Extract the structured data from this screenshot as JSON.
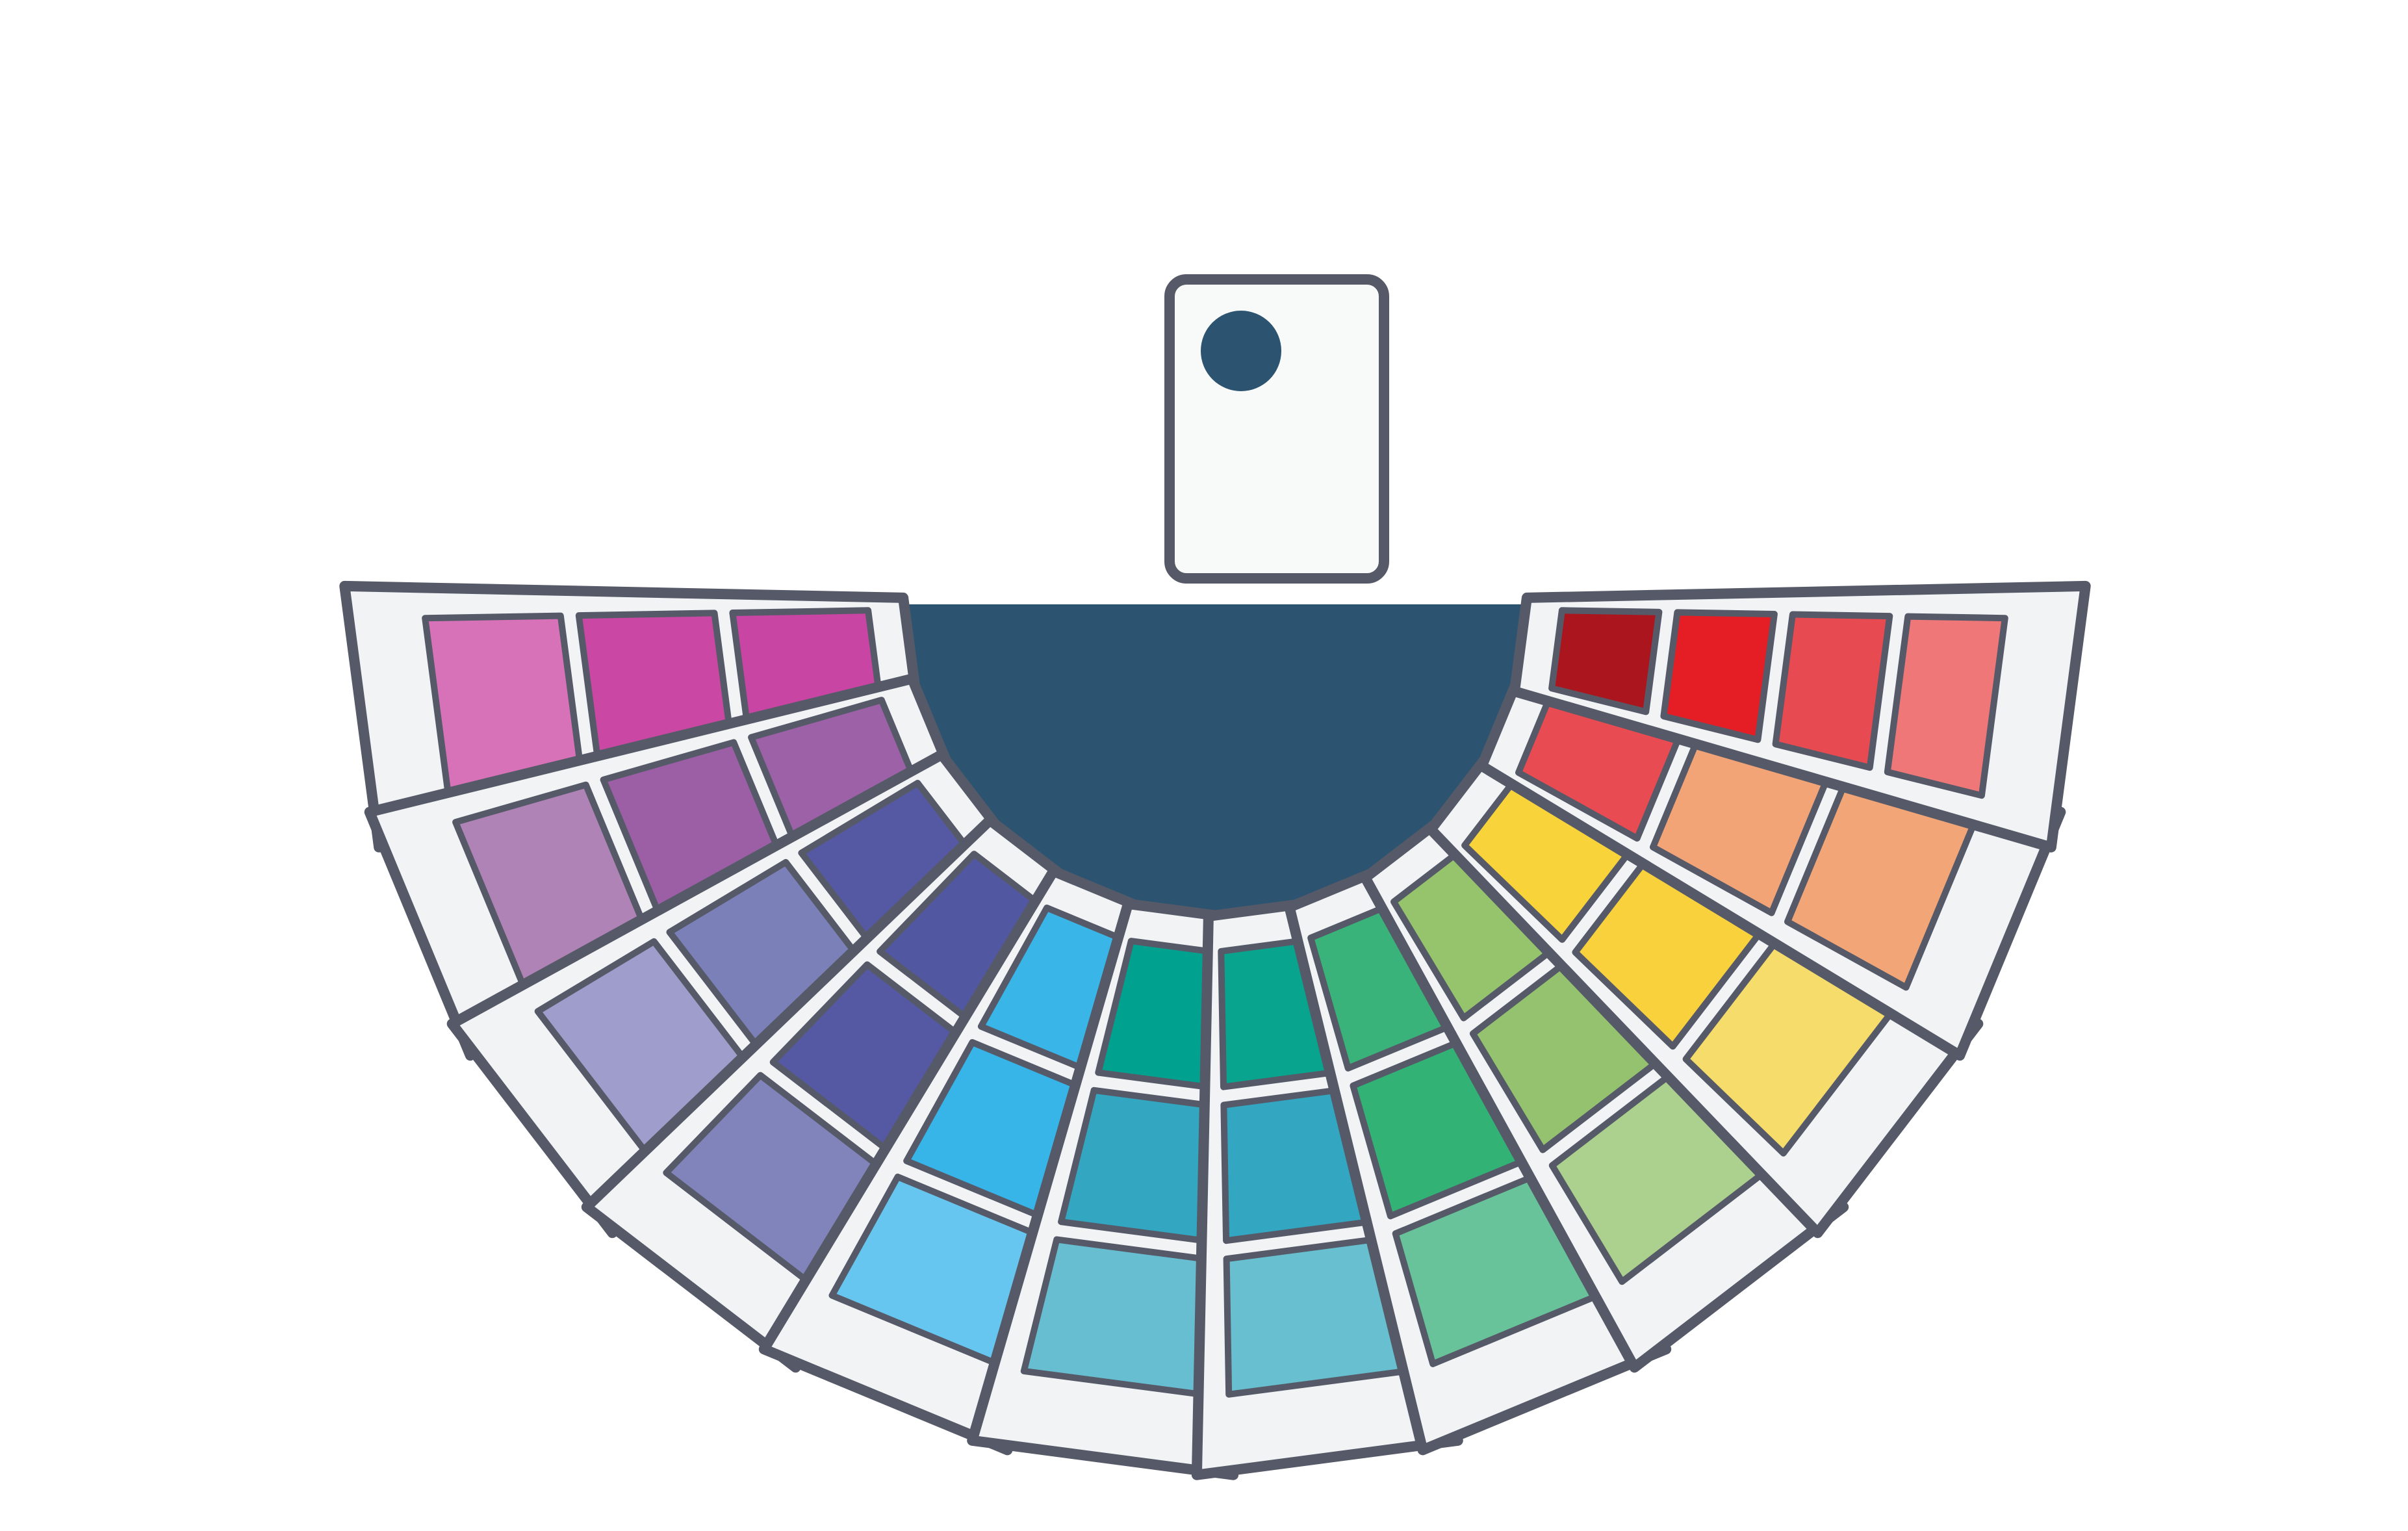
{
  "illustration": {
    "subject": "color-swatch-fan",
    "outline_color": "#565a68",
    "strip_fill": "#f1f3f5",
    "hub_color": "#2c5470",
    "hub_dot_color": "#2c5470",
    "cover_card_color": "#f8f9f9"
  },
  "strips": [
    {
      "name": "pink-magenta",
      "tabs": 3,
      "swatches": [
        "#d872b8",
        "#ca48a4",
        "#c945a3"
      ]
    },
    {
      "name": "purple",
      "tabs": 3,
      "swatches": [
        "#b083b6",
        "#9c5fa6",
        "#9c61a7"
      ]
    },
    {
      "name": "lavender-indigo",
      "tabs": 3,
      "swatches": [
        "#9f9dcb",
        "#7b80b8",
        "#5559a3"
      ]
    },
    {
      "name": "periwinkle-indigo",
      "tabs": 3,
      "swatches": [
        "#8184bb",
        "#5558a2",
        "#5257a1"
      ]
    },
    {
      "name": "sky-blue",
      "tabs": 3,
      "swatches": [
        "#67c6ef",
        "#37b4e8",
        "#39b5e7"
      ]
    },
    {
      "name": "light-teal",
      "tabs": 3,
      "swatches": [
        "#68bed1",
        "#33a7c2",
        "#00a28f"
      ]
    },
    {
      "name": "teal-turquoise",
      "tabs": 3,
      "swatches": [
        "#67bfcf",
        "#33a6c2",
        "#08a48e"
      ]
    },
    {
      "name": "green",
      "tabs": 3,
      "swatches": [
        "#69c39a",
        "#33b276",
        "#3ab37a"
      ]
    },
    {
      "name": "lime-green",
      "tabs": 3,
      "swatches": [
        "#acd18e",
        "#95c26f",
        "#95c46d"
      ]
    },
    {
      "name": "yellow",
      "tabs": 3,
      "swatches": [
        "#f5dc6b",
        "#f8d13c",
        "#f8d33a"
      ]
    },
    {
      "name": "peach-coral",
      "tabs": 3,
      "swatches": [
        "#f2a678",
        "#f2a477",
        "#e84b51"
      ]
    },
    {
      "name": "red",
      "tabs": 4,
      "swatches": [
        "#ef7778",
        "#e84a52",
        "#e51d25",
        "#ab151d"
      ]
    }
  ]
}
